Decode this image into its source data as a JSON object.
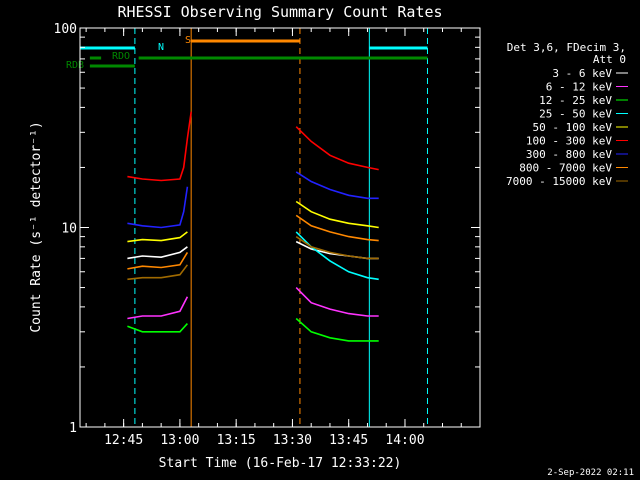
{
  "chart_data": {
    "type": "line",
    "title": "RHESSI Observing Summary Count Rates",
    "xlabel": "Start Time (16-Feb-17 12:33:22)",
    "ylabel": "Count Rate (s⁻¹ detector⁻¹)",
    "y_scale": "log",
    "ylim": [
      1,
      100
    ],
    "xlim": [
      "12:33:22",
      "14:20:00"
    ],
    "x_ticks": [
      "12:45",
      "13:00",
      "13:15",
      "13:30",
      "13:45",
      "14:00"
    ],
    "y_ticks": [
      "1",
      "10",
      "100"
    ],
    "legend_title": [
      "Det 3,6, FDecim 3,",
      "Att 0"
    ],
    "legend_position": "right",
    "series": [
      {
        "name": "3 - 6 keV",
        "color": "#ffffff",
        "segments": [
          {
            "x": [
              "12:46",
              "12:50",
              "12:55",
              "13:00",
              "13:02"
            ],
            "y": [
              7.0,
              7.2,
              7.1,
              7.5,
              8.0
            ]
          },
          {
            "x": [
              "13:31",
              "13:35",
              "13:40",
              "13:45",
              "13:50",
              "13:53"
            ],
            "y": [
              8.5,
              7.8,
              7.4,
              7.2,
              7.0,
              7.0
            ]
          }
        ]
      },
      {
        "name": "6 - 12 keV",
        "color": "#ff33ff",
        "segments": [
          {
            "x": [
              "12:46",
              "12:50",
              "12:55",
              "13:00",
              "13:02"
            ],
            "y": [
              3.5,
              3.6,
              3.6,
              3.8,
              4.5
            ]
          },
          {
            "x": [
              "13:31",
              "13:35",
              "13:40",
              "13:45",
              "13:50",
              "13:53"
            ],
            "y": [
              5.0,
              4.2,
              3.9,
              3.7,
              3.6,
              3.6
            ]
          }
        ]
      },
      {
        "name": "12 - 25 keV",
        "color": "#00ff00",
        "segments": [
          {
            "x": [
              "12:46",
              "12:50",
              "12:55",
              "13:00",
              "13:02"
            ],
            "y": [
              3.2,
              3.0,
              3.0,
              3.0,
              3.3
            ]
          },
          {
            "x": [
              "13:31",
              "13:35",
              "13:40",
              "13:45",
              "13:50",
              "13:53"
            ],
            "y": [
              3.5,
              3.0,
              2.8,
              2.7,
              2.7,
              2.7
            ]
          }
        ]
      },
      {
        "name": "25 - 50 keV",
        "color": "#00ffff",
        "segments": [
          {
            "x": [
              "13:31",
              "13:35",
              "13:40",
              "13:45",
              "13:50",
              "13:53"
            ],
            "y": [
              9.5,
              8.0,
              6.8,
              6.0,
              5.6,
              5.5
            ]
          }
        ]
      },
      {
        "name": "50 - 100 keV",
        "color": "#ffff00",
        "segments": [
          {
            "x": [
              "12:46",
              "12:50",
              "12:55",
              "13:00",
              "13:02"
            ],
            "y": [
              8.5,
              8.7,
              8.6,
              8.9,
              9.5
            ]
          },
          {
            "x": [
              "13:31",
              "13:35",
              "13:40",
              "13:45",
              "13:50",
              "13:53"
            ],
            "y": [
              13.5,
              12.0,
              11.0,
              10.5,
              10.2,
              10.0
            ]
          }
        ]
      },
      {
        "name": "100 - 300 keV",
        "color": "#ff0000",
        "segments": [
          {
            "x": [
              "12:46",
              "12:50",
              "12:55",
              "13:00",
              "13:01",
              "13:02",
              "13:03"
            ],
            "y": [
              18.0,
              17.5,
              17.2,
              17.5,
              20.0,
              28.0,
              38.0
            ]
          },
          {
            "x": [
              "13:31",
              "13:35",
              "13:40",
              "13:45",
              "13:50",
              "13:53"
            ],
            "y": [
              32.0,
              27.0,
              23.0,
              21.0,
              20.0,
              19.5
            ]
          }
        ]
      },
      {
        "name": "300 - 800 keV",
        "color": "#2222ff",
        "segments": [
          {
            "x": [
              "12:46",
              "12:50",
              "12:55",
              "13:00",
              "13:01",
              "13:02"
            ],
            "y": [
              10.5,
              10.2,
              10.0,
              10.3,
              12.0,
              16.0
            ]
          },
          {
            "x": [
              "13:31",
              "13:35",
              "13:40",
              "13:45",
              "13:50",
              "13:53"
            ],
            "y": [
              19.0,
              17.0,
              15.5,
              14.5,
              14.0,
              14.0
            ]
          }
        ]
      },
      {
        "name": "800 - 7000 keV",
        "color": "#ff8800",
        "segments": [
          {
            "x": [
              "12:46",
              "12:50",
              "12:55",
              "13:00",
              "13:02"
            ],
            "y": [
              6.2,
              6.4,
              6.3,
              6.5,
              7.5
            ]
          },
          {
            "x": [
              "13:31",
              "13:35",
              "13:40",
              "13:45",
              "13:50",
              "13:53"
            ],
            "y": [
              11.5,
              10.2,
              9.5,
              9.0,
              8.7,
              8.6
            ]
          }
        ]
      },
      {
        "name": "7000 - 15000 keV",
        "color": "#a06a00",
        "segments": [
          {
            "x": [
              "12:46",
              "12:50",
              "12:55",
              "13:00",
              "13:02"
            ],
            "y": [
              5.5,
              5.6,
              5.6,
              5.8,
              6.5
            ]
          },
          {
            "x": [
              "13:31",
              "13:35",
              "13:40",
              "13:45",
              "13:50",
              "13:53"
            ],
            "y": [
              9.0,
              8.0,
              7.5,
              7.2,
              7.0,
              7.0
            ]
          }
        ]
      }
    ],
    "flags": [
      {
        "label": "N",
        "color": "#00ffff",
        "segments": [
          [
            "12:33:22",
            "12:48:00"
          ],
          [
            "13:50:30",
            "14:06:00"
          ]
        ]
      },
      {
        "label": "S",
        "color": "#ff8800",
        "segments": [
          [
            "13:03:00",
            "13:32:00"
          ]
        ]
      },
      {
        "label": "RDO",
        "color": "#008800",
        "segments": [
          [
            "12:36:00",
            "12:39:00"
          ],
          [
            "12:49:00",
            "14:06:00"
          ]
        ]
      },
      {
        "label": "RDB",
        "color": "#008800",
        "segments": [
          [
            "12:36:00",
            "12:48:00"
          ]
        ]
      }
    ],
    "vlines": [
      {
        "x": "12:33:22",
        "color": "#00ffff",
        "style": "solid"
      },
      {
        "x": "12:48:00",
        "color": "#00ffff",
        "style": "dashed"
      },
      {
        "x": "13:03:00",
        "color": "#ff8800",
        "style": "solid"
      },
      {
        "x": "13:32:00",
        "color": "#ff8800",
        "style": "dashed"
      },
      {
        "x": "13:50:30",
        "color": "#00ffff",
        "style": "solid"
      },
      {
        "x": "14:06:00",
        "color": "#00ffff",
        "style": "dashed"
      }
    ]
  },
  "footer": {
    "date": "2-Sep-2022 02:11"
  }
}
